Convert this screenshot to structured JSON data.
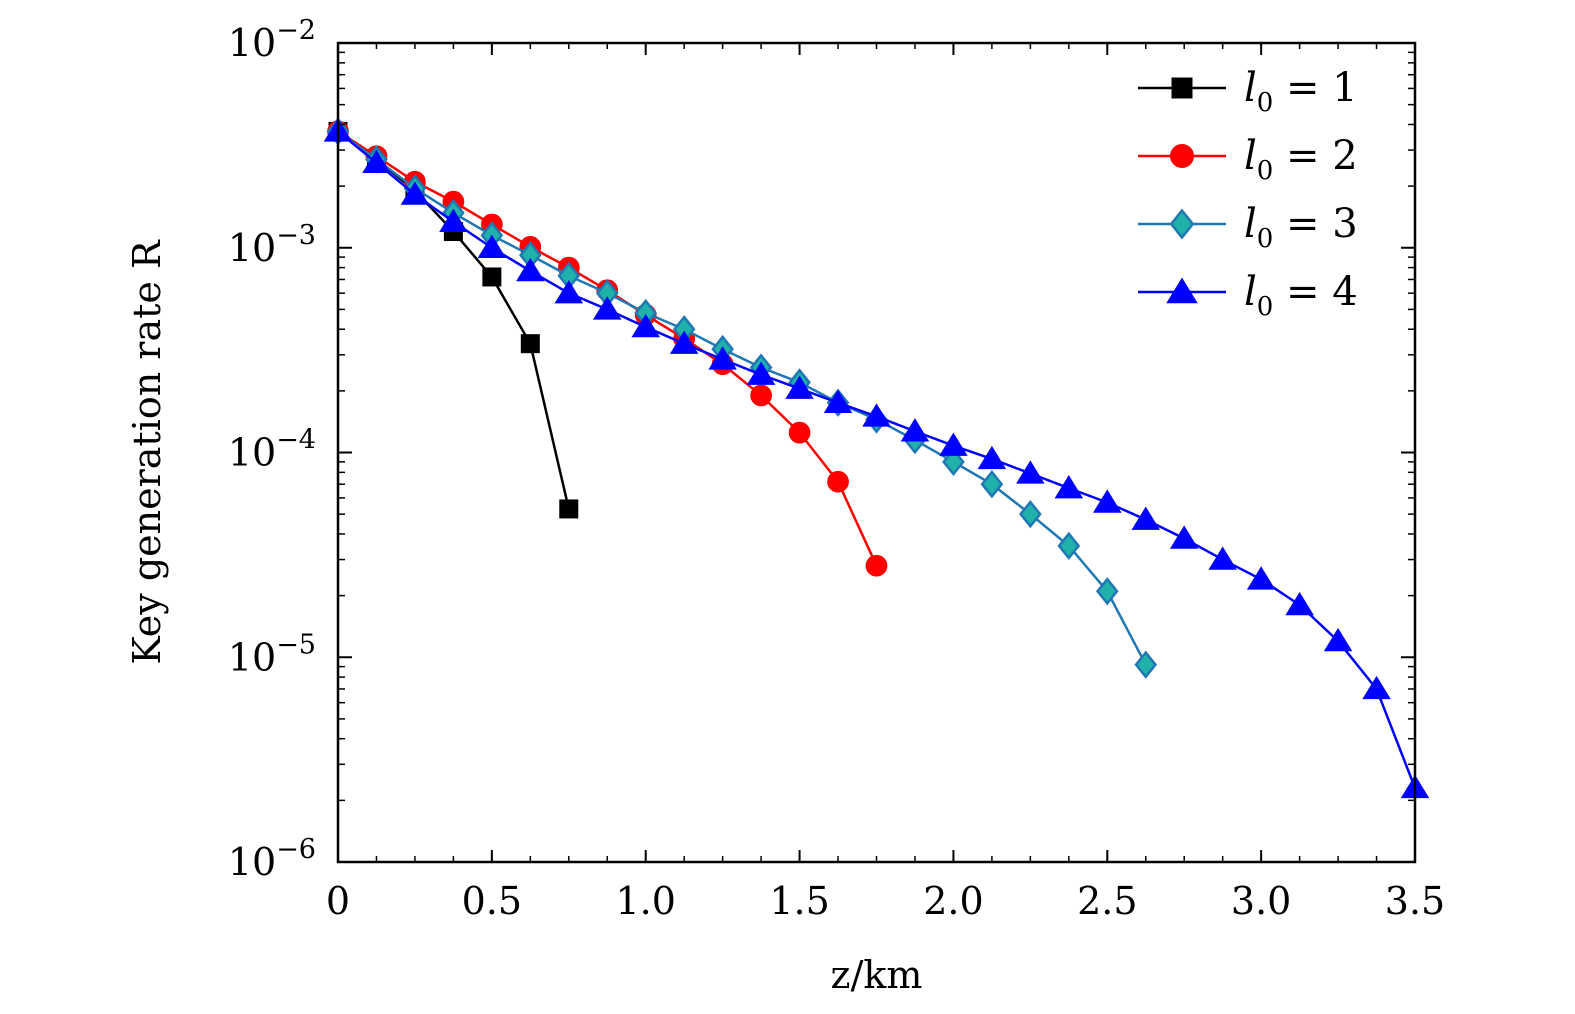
{
  "chart_data": {
    "type": "line",
    "title": "",
    "xlabel": "z/km",
    "ylabel": "Key generation rate R",
    "xlim": [
      0,
      3.5
    ],
    "ylim": [
      1e-06,
      0.01
    ],
    "yscale": "log",
    "x_ticks": [
      0,
      0.5,
      1.0,
      1.5,
      2.0,
      2.5,
      3.0,
      3.5
    ],
    "x_tick_labels": [
      "0",
      "0.5",
      "1.0",
      "1.5",
      "2.0",
      "2.5",
      "3.0",
      "3.5"
    ],
    "y_tick_exponents": [
      -6,
      -5,
      -4,
      -3,
      -2
    ],
    "y_tick_base": "10",
    "y_tick_labels": [
      "10−6",
      "10−5",
      "10−4",
      "10−3",
      "10−2"
    ],
    "legend_position": "top-right",
    "series": [
      {
        "name": "l0 = 1",
        "legend_l": "l",
        "legend_sub": "0",
        "legend_rest": " = 1",
        "color": "#000000",
        "marker": "square",
        "x": [
          0,
          0.125,
          0.25,
          0.375,
          0.5,
          0.625,
          0.75
        ],
        "y": [
          0.0037,
          0.0027,
          0.0019,
          0.0012,
          0.00072,
          0.00034,
          5.3e-05
        ]
      },
      {
        "name": "l0 = 2",
        "legend_l": "l",
        "legend_sub": "0",
        "legend_rest": " = 2",
        "color": "#ff0000",
        "marker": "circle",
        "x": [
          0,
          0.125,
          0.25,
          0.375,
          0.5,
          0.625,
          0.75,
          0.875,
          1.0,
          1.125,
          1.25,
          1.375,
          1.5,
          1.625,
          1.75
        ],
        "y": [
          0.0037,
          0.0028,
          0.0021,
          0.00168,
          0.0013,
          0.00101,
          0.0008,
          0.00062,
          0.00047,
          0.00036,
          0.00027,
          0.00019,
          0.000125,
          7.2e-05,
          2.8e-05
        ]
      },
      {
        "name": "l0 = 3",
        "legend_l": "l",
        "legend_sub": "0",
        "legend_rest": " = 3",
        "color": "#1f77b4",
        "marker_fill": "#20b2aa",
        "marker": "diamond",
        "x": [
          0,
          0.125,
          0.25,
          0.375,
          0.5,
          0.625,
          0.75,
          0.875,
          1.0,
          1.125,
          1.25,
          1.375,
          1.5,
          1.625,
          1.75,
          1.875,
          2.0,
          2.125,
          2.25,
          2.375,
          2.5,
          2.625
        ],
        "y": [
          0.0037,
          0.0027,
          0.00195,
          0.00148,
          0.00115,
          0.00092,
          0.00073,
          0.0006,
          0.00048,
          0.0004,
          0.00032,
          0.00026,
          0.00022,
          0.000175,
          0.000145,
          0.000115,
          9e-05,
          7e-05,
          5e-05,
          3.5e-05,
          2.1e-05,
          9.2e-06
        ]
      },
      {
        "name": "l0 = 4",
        "legend_l": "l",
        "legend_sub": "0",
        "legend_rest": " = 4",
        "color": "#0000ff",
        "marker": "triangle",
        "x": [
          0,
          0.125,
          0.25,
          0.375,
          0.5,
          0.625,
          0.75,
          0.875,
          1.0,
          1.125,
          1.25,
          1.375,
          1.5,
          1.625,
          1.75,
          1.875,
          2.0,
          2.125,
          2.25,
          2.375,
          2.5,
          2.625,
          2.75,
          2.875,
          3.0,
          3.125,
          3.25,
          3.375,
          3.5
        ],
        "y": [
          0.0037,
          0.0026,
          0.00182,
          0.00134,
          0.001,
          0.00077,
          0.0006,
          0.0005,
          0.00041,
          0.00034,
          0.000285,
          0.00024,
          0.000205,
          0.000175,
          0.00015,
          0.000127,
          0.000108,
          9.3e-05,
          7.9e-05,
          6.7e-05,
          5.7e-05,
          4.7e-05,
          3.8e-05,
          3e-05,
          2.4e-05,
          1.8e-05,
          1.2e-05,
          7e-06,
          2.3e-06
        ]
      }
    ]
  }
}
